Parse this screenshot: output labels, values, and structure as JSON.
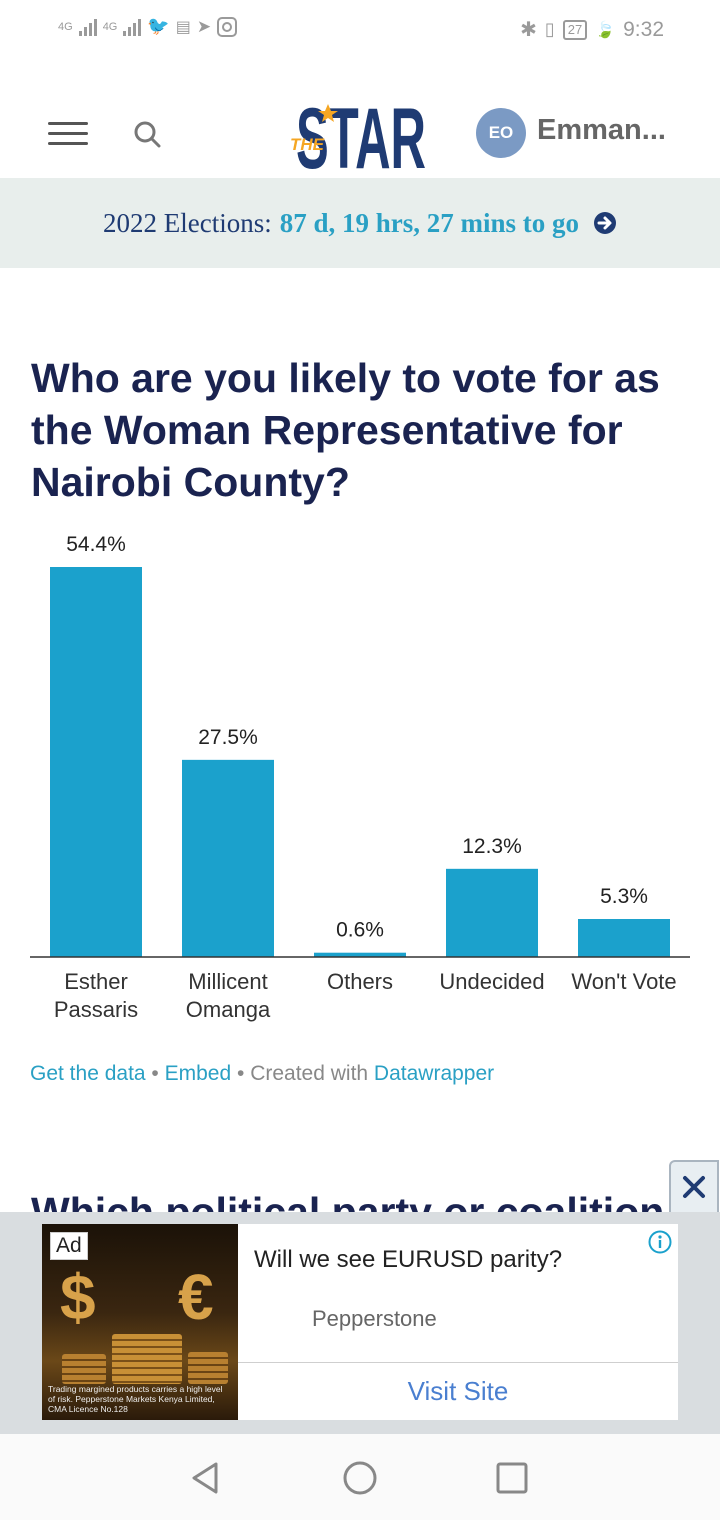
{
  "status_bar": {
    "network_1": "4G",
    "network_2": "4G",
    "battery": "27",
    "time": "9:32"
  },
  "header": {
    "logo_prefix": "THE",
    "logo_text": "STAR",
    "user_initials": "EO",
    "user_name": "Emman..."
  },
  "countdown": {
    "label": "2022 Elections:",
    "value": "87 d, 19 hrs, 27 mins to go"
  },
  "poll": {
    "question": "Who are you likely to vote for as the Woman Representative for Nairobi County?"
  },
  "chart_data": {
    "type": "bar",
    "title": "",
    "xlabel": "",
    "ylabel": "",
    "categories": [
      "Esther Passaris",
      "Millicent Omanga",
      "Others",
      "Undecided",
      "Won't Vote"
    ],
    "category_lines": [
      [
        "Esther",
        "Passaris"
      ],
      [
        "Millicent",
        "Omanga"
      ],
      [
        "Others"
      ],
      [
        "Undecided"
      ],
      [
        "Won't Vote"
      ]
    ],
    "values": [
      54.4,
      27.5,
      0.6,
      12.3,
      5.3
    ],
    "value_labels": [
      "54.4%",
      "27.5%",
      "0.6%",
      "12.3%",
      "5.3%"
    ],
    "ylim": [
      0,
      54.4
    ],
    "bar_color": "#1ba1cc",
    "grid": false,
    "legend": "none"
  },
  "chart_footer": {
    "get_data": "Get the data",
    "sep1": " • ",
    "embed": "Embed",
    "sep2": " • Created with ",
    "datawrapper": "Datawrapper"
  },
  "next_question": "Which political party or coalition",
  "ad": {
    "badge": "Ad",
    "title": "Will we see EURUSD parity?",
    "brand": "Pepperstone",
    "cta": "Visit Site",
    "disclaimer": "Trading margined products carries a high level of risk. Pepperstone Markets Kenya Limited, CMA Licence No.128",
    "image_symbols": [
      "$",
      "€"
    ]
  },
  "colors": {
    "accent": "#1ba1cc",
    "brand": "#1f3b73",
    "heading": "#1a2350"
  },
  "icons": [
    "hamburger-icon",
    "search-icon",
    "arrow-right-circle-icon",
    "close-icon",
    "info-icon",
    "back-icon",
    "home-icon",
    "recents-icon"
  ]
}
